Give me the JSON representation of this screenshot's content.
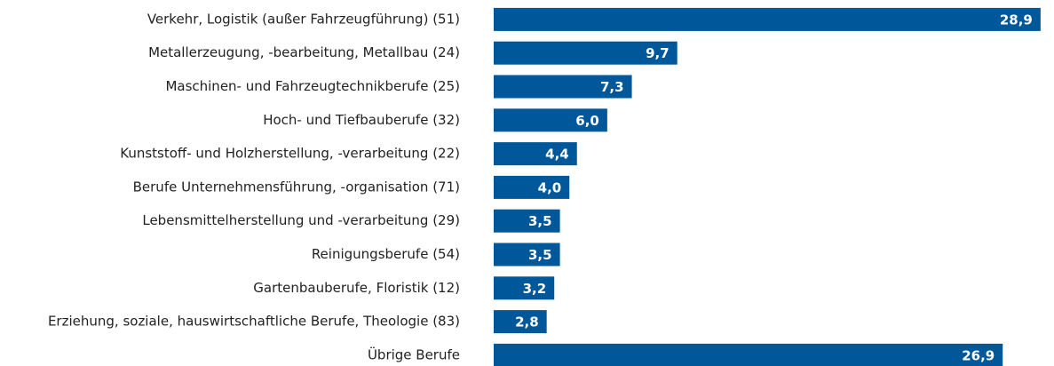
{
  "chart_data": {
    "type": "barh",
    "categories": [
      "Verkehr, Logistik (außer Fahrzeugführung) (51)",
      "Metallerzeugung, -bearbeitung, Metallbau (24)",
      "Maschinen- und Fahrzeugtechnikberufe (25)",
      "Hoch- und Tiefbauberufe (32)",
      "Kunststoff- und Holzherstellung, -verarbeitung (22)",
      "Berufe Unternehmensführung, -organisation (71)",
      "Lebensmittelherstellung und -verarbeitung (29)",
      "Reinigungsberufe (54)",
      "Gartenbauberufe, Floristik (12)",
      "Erziehung, soziale, hauswirtschaftliche Berufe, Theologie (83)",
      "Übrige Berufe"
    ],
    "values": [
      28.9,
      9.7,
      7.3,
      6.0,
      4.4,
      4.0,
      3.5,
      3.5,
      3.2,
      2.8,
      26.9
    ],
    "value_labels": [
      "28,9",
      "9,7",
      "7,3",
      "6,0",
      "4,4",
      "4,0",
      "3,5",
      "3,5",
      "3,2",
      "2,8",
      "26,9"
    ],
    "color": "#00589b",
    "xlim": [
      0,
      29
    ]
  }
}
